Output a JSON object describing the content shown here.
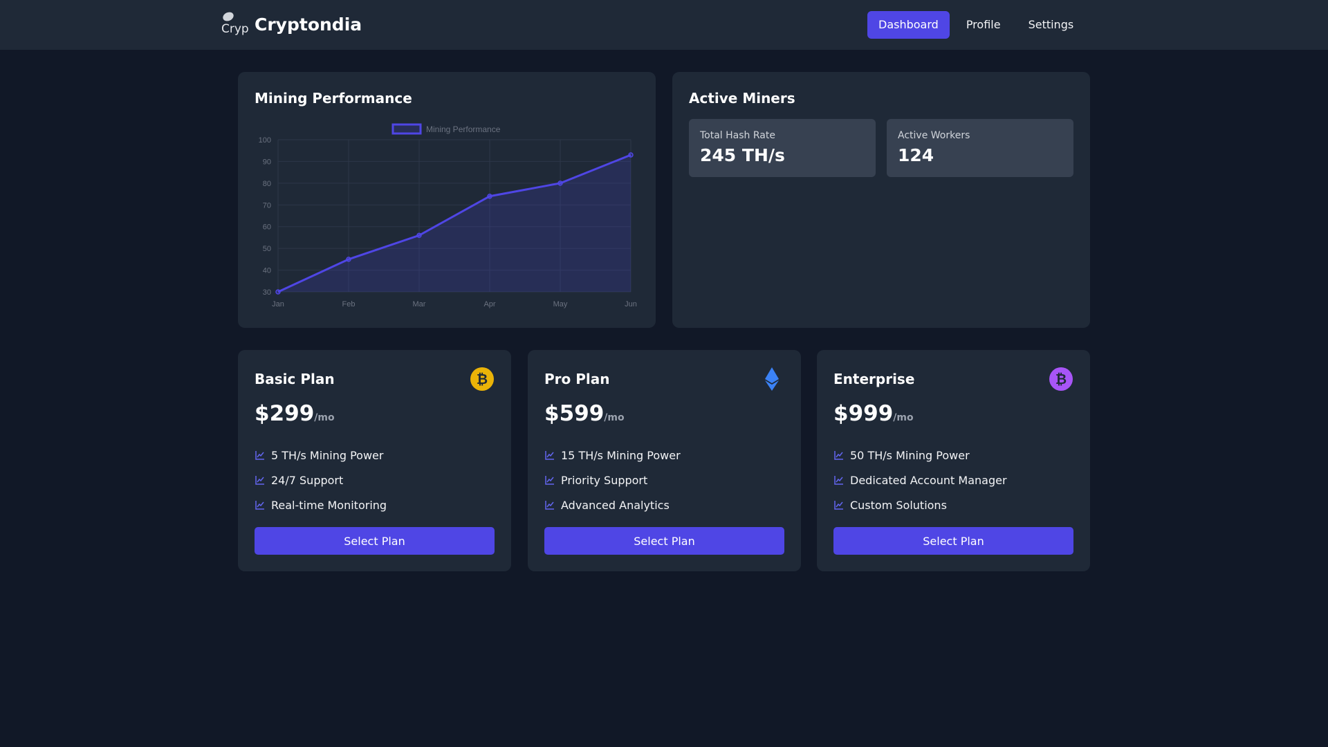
{
  "nav": {
    "logo_alt": "Cryptondia",
    "brand": "Cryptondia",
    "links": [
      {
        "label": "Dashboard",
        "active": true
      },
      {
        "label": "Profile",
        "active": false
      },
      {
        "label": "Settings",
        "active": false
      }
    ]
  },
  "performance": {
    "title": "Mining Performance"
  },
  "chart_data": {
    "type": "area",
    "categories": [
      "Jan",
      "Feb",
      "Mar",
      "Apr",
      "May",
      "Jun"
    ],
    "series": [
      {
        "name": "Mining Performance",
        "values": [
          30,
          45,
          56,
          74,
          80,
          93
        ],
        "color": "#4f46e5"
      }
    ],
    "ylim": [
      30,
      100
    ],
    "yticks": [
      30,
      40,
      50,
      60,
      70,
      80,
      90,
      100
    ],
    "grid": true,
    "legend": "top"
  },
  "miners": {
    "title": "Active Miners",
    "stats": [
      {
        "label": "Total Hash Rate",
        "value": "245 TH/s"
      },
      {
        "label": "Active Workers",
        "value": "124"
      }
    ]
  },
  "plans": [
    {
      "name": "Basic Plan",
      "icon": "bitcoin-icon",
      "icon_color": "#eab308",
      "price": "$299",
      "unit": "/mo",
      "features": [
        "5 TH/s Mining Power",
        "24/7 Support",
        "Real-time Monitoring"
      ],
      "button": "Select Plan"
    },
    {
      "name": "Pro Plan",
      "icon": "ethereum-icon",
      "icon_color": "#3b82f6",
      "price": "$599",
      "unit": "/mo",
      "features": [
        "15 TH/s Mining Power",
        "Priority Support",
        "Advanced Analytics"
      ],
      "button": "Select Plan"
    },
    {
      "name": "Enterprise",
      "icon": "bitcoin-icon",
      "icon_color": "#a855f7",
      "price": "$999",
      "unit": "/mo",
      "features": [
        "50 TH/s Mining Power",
        "Dedicated Account Manager",
        "Custom Solutions"
      ],
      "button": "Select Plan"
    }
  ]
}
